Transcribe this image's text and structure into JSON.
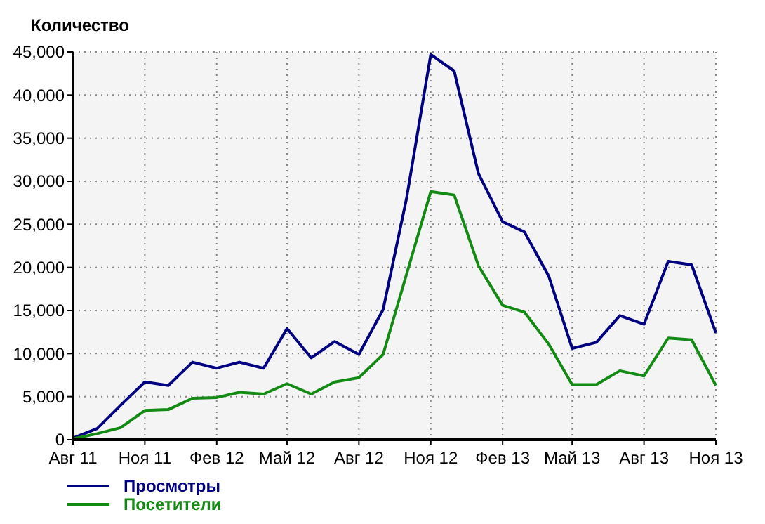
{
  "chart_data": {
    "type": "line",
    "ylabel": "Количество",
    "x": [
      "2011-08",
      "2011-09",
      "2011-10",
      "2011-11",
      "2011-12",
      "2012-01",
      "2012-02",
      "2012-03",
      "2012-04",
      "2012-05",
      "2012-06",
      "2012-07",
      "2012-08",
      "2012-09",
      "2012-10",
      "2012-11",
      "2012-12",
      "2013-01",
      "2013-02",
      "2013-03",
      "2013-04",
      "2013-05",
      "2013-06",
      "2013-07",
      "2013-08",
      "2013-09",
      "2013-10",
      "2013-11"
    ],
    "series": [
      {
        "name": "Просмотры",
        "color": "#000080",
        "values": [
          200,
          1300,
          4000,
          6700,
          6300,
          9000,
          8300,
          9000,
          8300,
          12900,
          9500,
          11400,
          9900,
          15100,
          28000,
          44700,
          42800,
          30900,
          25300,
          24100,
          19000,
          10600,
          11300,
          14400,
          13400,
          20700,
          20300,
          12400
        ]
      },
      {
        "name": "Посетители",
        "color": "#138a13",
        "values": [
          100,
          700,
          1400,
          3400,
          3500,
          4800,
          4900,
          5500,
          5300,
          6500,
          5300,
          6700,
          7200,
          9900,
          19200,
          28800,
          28400,
          20200,
          15600,
          14800,
          11100,
          6400,
          6400,
          8000,
          7400,
          11800,
          11600,
          6300
        ]
      }
    ],
    "xlim": [
      "2011-08",
      "2013-11"
    ],
    "xticks": [
      {
        "value": "2011-08",
        "label": "Авг 11"
      },
      {
        "value": "2011-11",
        "label": "Ноя 11"
      },
      {
        "value": "2012-02",
        "label": "Фев 12"
      },
      {
        "value": "2012-05",
        "label": "Май 12"
      },
      {
        "value": "2012-08",
        "label": "Авг 12"
      },
      {
        "value": "2012-11",
        "label": "Ноя 12"
      },
      {
        "value": "2013-02",
        "label": "Фев 13"
      },
      {
        "value": "2013-05",
        "label": "Май 13"
      },
      {
        "value": "2013-08",
        "label": "Авг 13"
      },
      {
        "value": "2013-11",
        "label": "Ноя 13"
      }
    ],
    "ylim": [
      0,
      45000
    ],
    "yticks": [
      {
        "value": 0,
        "label": "0"
      },
      {
        "value": 5000,
        "label": "5,000"
      },
      {
        "value": 10000,
        "label": "10,000"
      },
      {
        "value": 15000,
        "label": "15,000"
      },
      {
        "value": 20000,
        "label": "20,000"
      },
      {
        "value": 25000,
        "label": "25,000"
      },
      {
        "value": 30000,
        "label": "30,000"
      },
      {
        "value": 35000,
        "label": "35,000"
      },
      {
        "value": 40000,
        "label": "40,000"
      },
      {
        "value": 45000,
        "label": "45,000"
      }
    ],
    "grid": true,
    "legend": "bottom left",
    "marker": "none",
    "line_style": "solid"
  }
}
